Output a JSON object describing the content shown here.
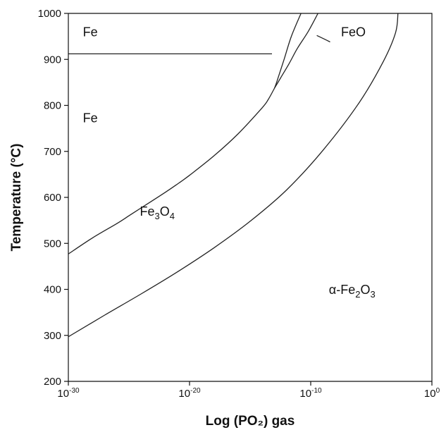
{
  "chart_data": {
    "type": "line",
    "title": "",
    "xlabel": "Log (PO₂) gas",
    "ylabel": "Temperature (°C)",
    "xscale": "log",
    "xlim": [
      -30,
      0
    ],
    "ylim": [
      200,
      1000
    ],
    "grid": false,
    "x_ticks": [
      {
        "value": -30,
        "base": "10",
        "exp": "-30"
      },
      {
        "value": -20,
        "base": "10",
        "exp": "-20"
      },
      {
        "value": -10,
        "base": "10",
        "exp": "-10"
      },
      {
        "value": 0,
        "base": "10",
        "exp": "0"
      }
    ],
    "y_ticks": [
      "200",
      "300",
      "400",
      "500",
      "600",
      "700",
      "800",
      "900",
      "1000"
    ],
    "series": [
      {
        "x": [
          -30,
          -28,
          -26,
          -25,
          -24,
          -22,
          -21,
          -20,
          -18,
          -16,
          -14,
          -13.5,
          -13.0
        ],
        "y": [
          477,
          512,
          543,
          560,
          577,
          611,
          629,
          648,
          690,
          738,
          795,
          813,
          837
        ]
      },
      {
        "x": [
          -13.0,
          -12.8,
          -12.2,
          -11.6,
          -10.8
        ],
        "y": [
          837,
          851,
          900,
          950,
          1000
        ]
      },
      {
        "x": [
          -13.0,
          -12.5,
          -11.8,
          -11.1,
          -10.2,
          -9.4
        ],
        "y": [
          837,
          859,
          890,
          924,
          961,
          1000
        ]
      },
      {
        "x": [
          -30,
          -27,
          -24,
          -21,
          -18,
          -15,
          -12,
          -9,
          -6,
          -4,
          -3,
          -2.8
        ],
        "y": [
          297,
          344,
          390,
          438,
          490,
          548,
          616,
          702,
          806,
          896,
          958,
          1000
        ]
      },
      {
        "x": [
          -30,
          -13.2
        ],
        "y": [
          912,
          912
        ]
      },
      {
        "x": [
          -9.5,
          -8.4
        ],
        "y": [
          952,
          938
        ]
      }
    ],
    "annotations": [
      {
        "text": "Fe",
        "x": -28.8,
        "y": 950
      },
      {
        "text": "FeO",
        "x": -7.5,
        "y": 950
      },
      {
        "text": "Fe",
        "x": -28.8,
        "y": 763
      },
      {
        "parts": [
          "Fe",
          "3",
          "O",
          "4"
        ],
        "x": -24.1,
        "y": 560
      },
      {
        "parts": [
          "α-Fe",
          "2",
          "O",
          "3"
        ],
        "x": -8.5,
        "y": 390
      }
    ]
  }
}
